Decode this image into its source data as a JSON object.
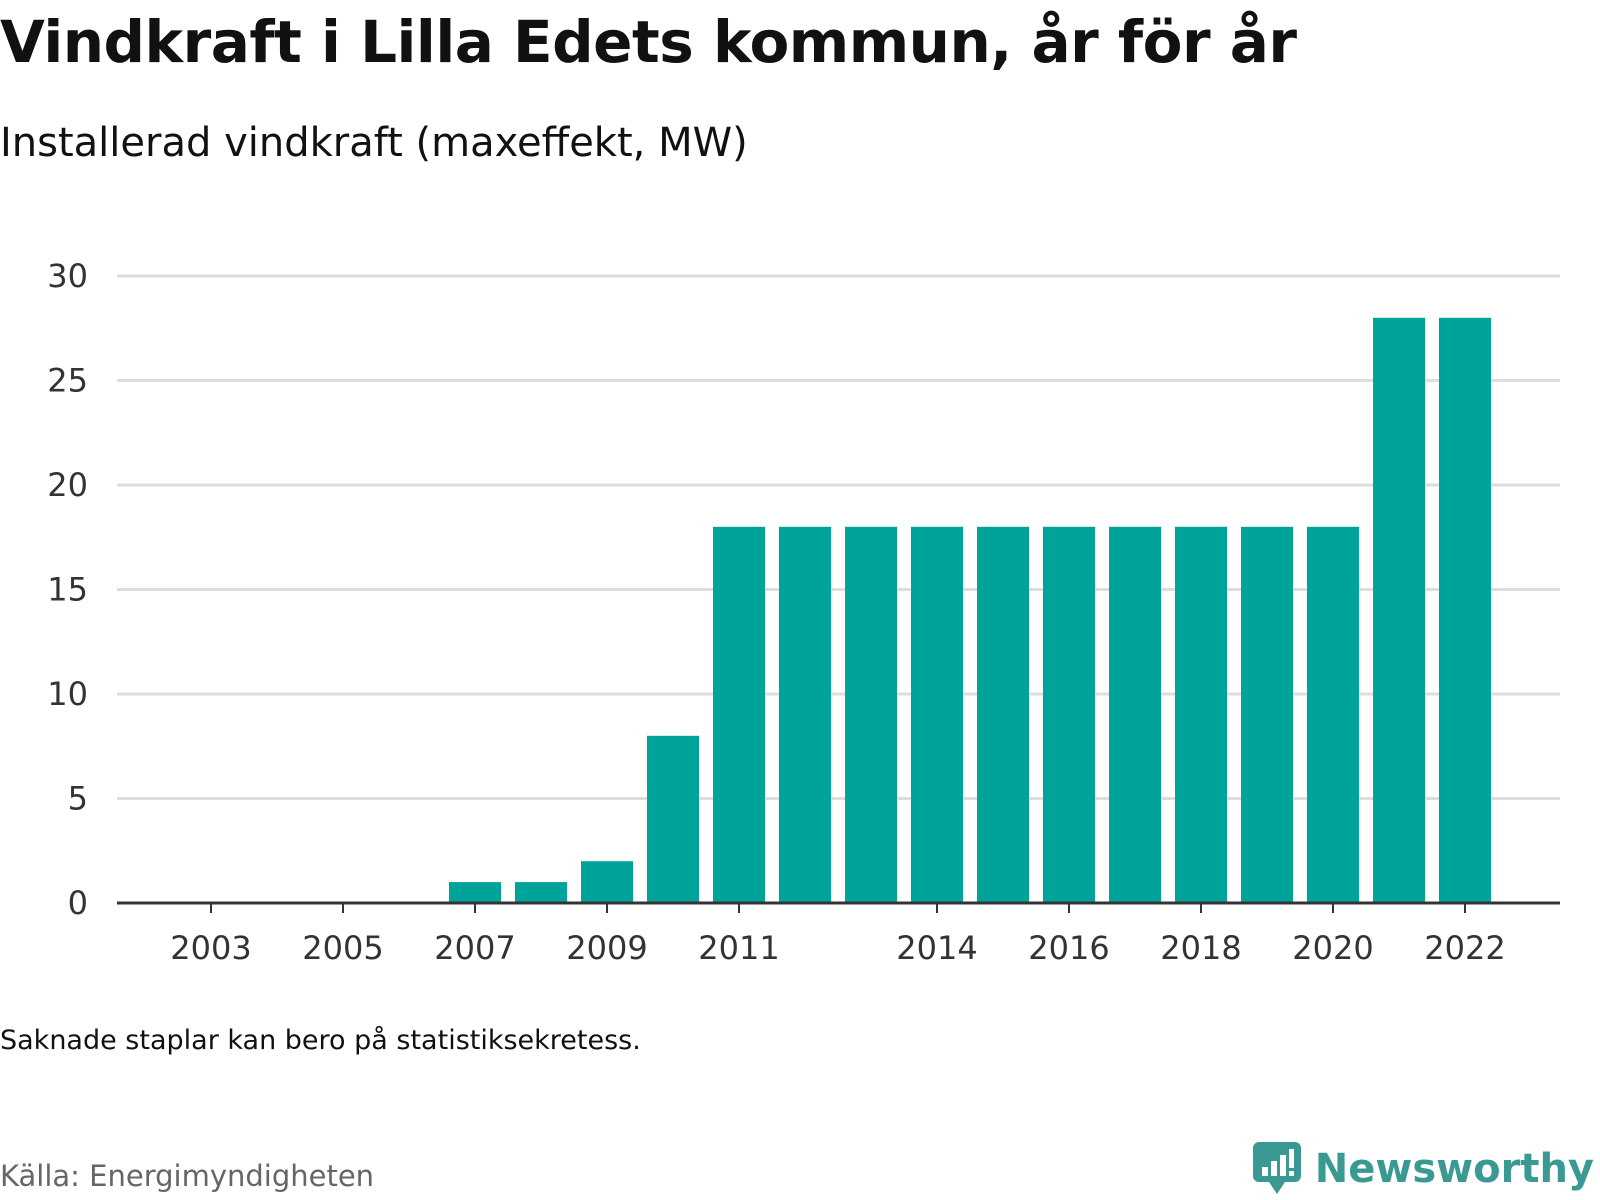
{
  "header": {
    "title": "Vindkraft i Lilla Edets kommun, år för år",
    "subtitle": "Installerad vindkraft (maxeffekt, MW)"
  },
  "footer": {
    "note": "Saknade staplar kan bero på statistiksekretess.",
    "source": "Källa: Energimyndigheten",
    "brand": "Newsworthy",
    "brand_icon": "newsworthy-logo-icon"
  },
  "colors": {
    "bar": "#00a39a",
    "grid": "#dddddd",
    "axis": "#333333",
    "brand": "#3a9a93"
  },
  "chart_data": {
    "type": "bar",
    "title": "Vindkraft i Lilla Edets kommun, år för år",
    "subtitle": "Installerad vindkraft (maxeffekt, MW)",
    "xlabel": "",
    "ylabel": "",
    "categories": [
      "2002",
      "2003",
      "2004",
      "2005",
      "2006",
      "2007",
      "2008",
      "2009",
      "2010",
      "2011",
      "2012",
      "2013",
      "2014",
      "2015",
      "2016",
      "2017",
      "2018",
      "2019",
      "2020",
      "2021",
      "2022"
    ],
    "values": [
      0,
      0,
      0,
      0,
      0,
      1,
      1,
      2,
      8,
      18,
      18,
      18,
      18,
      18,
      18,
      18,
      18,
      18,
      18,
      28,
      28
    ],
    "x_tick_labels": [
      "2003",
      "2005",
      "2007",
      "2009",
      "2011",
      "2014",
      "2016",
      "2018",
      "2020",
      "2022"
    ],
    "y_ticks": [
      0,
      5,
      10,
      15,
      20,
      25,
      30
    ],
    "ylim": [
      0,
      30
    ],
    "grid": true,
    "legend": "none"
  }
}
